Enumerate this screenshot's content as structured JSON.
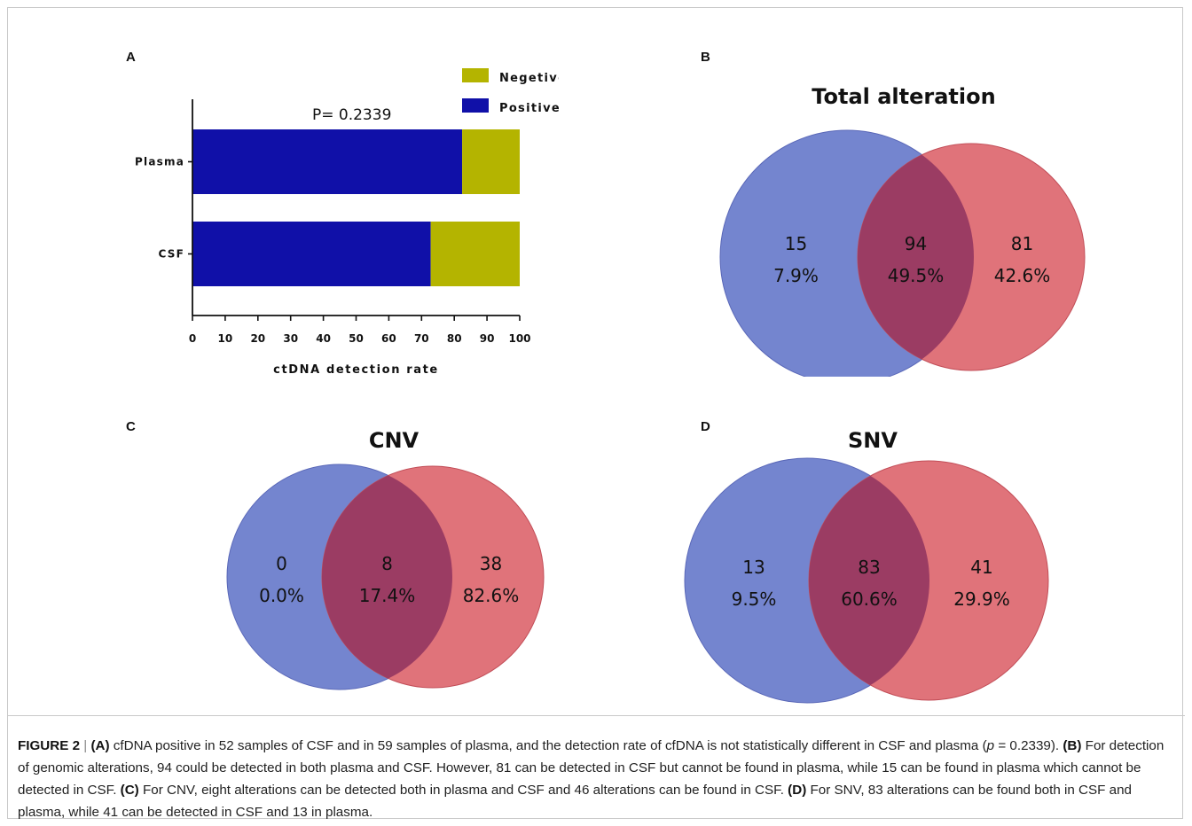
{
  "panel_labels": {
    "a": "A",
    "b": "B",
    "c": "C",
    "d": "D"
  },
  "colors": {
    "positive": "#1010a8",
    "negative": "#b4b400",
    "left_circle": "#7485cf",
    "right_circle": "#e0737a",
    "overlap": "#9b3c63"
  },
  "chart_data": [
    {
      "type": "bar",
      "orientation": "horizontal",
      "stacked": true,
      "categories": [
        "Plasma",
        "CSF"
      ],
      "series": [
        {
          "name": "Positive",
          "values": [
            82.4,
            72.8
          ],
          "color": "#1010a8"
        },
        {
          "name": "Negetive",
          "values": [
            17.6,
            27.2
          ],
          "color": "#b4b400"
        }
      ],
      "annotation": "P= 0.2339",
      "xlabel": "ctDNA detection rate",
      "xlim": [
        0,
        100
      ],
      "xticks": [
        "0",
        "10",
        "20",
        "30",
        "40",
        "50",
        "60",
        "70",
        "80",
        "90",
        "100"
      ],
      "legend_position": "top-right"
    },
    {
      "type": "venn",
      "title": "Total alteration",
      "left": {
        "count": "15",
        "pct": "7.9%"
      },
      "overlap": {
        "count": "94",
        "pct": "49.5%"
      },
      "right": {
        "count": "81",
        "pct": "42.6%"
      }
    },
    {
      "type": "venn",
      "title": "CNV",
      "left": {
        "count": "0",
        "pct": "0.0%"
      },
      "overlap": {
        "count": "8",
        "pct": "17.4%"
      },
      "right": {
        "count": "38",
        "pct": "82.6%"
      }
    },
    {
      "type": "venn",
      "title": "SNV",
      "left": {
        "count": "13",
        "pct": "9.5%"
      },
      "overlap": {
        "count": "83",
        "pct": "60.6%"
      },
      "right": {
        "count": "41",
        "pct": "29.9%"
      }
    }
  ],
  "caption": {
    "fig_label": "FIGURE 2",
    "sep": "|",
    "a_label": "(A)",
    "a_text": " cfDNA positive in 52 samples of CSF and in 59 samples of plasma, and the detection rate of cfDNA is not statistically different in CSF and plasma (",
    "p_symbol": "p",
    "p_text": " = 0.2339). ",
    "b_label": "(B)",
    "b_text": " For detection of genomic alterations, 94 could be detected in both plasma and CSF. However, 81 can be detected in CSF but cannot be found in plasma, while 15 can be found in plasma which cannot be detected in CSF. ",
    "c_label": "(C)",
    "c_text": " For CNV, eight alterations can be detected both in plasma and CSF and 46 alterations can be found in CSF. ",
    "d_label": "(D)",
    "d_text": " For SNV, 83 alterations can be found both in CSF and plasma, while 41 can be detected in CSF and 13 in plasma."
  }
}
